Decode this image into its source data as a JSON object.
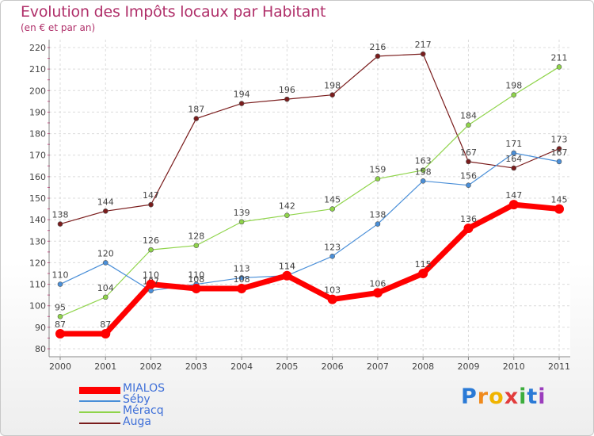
{
  "header": {
    "title": "Evolution des Impôts locaux par Habitant",
    "subtitle": "(en € et par an)"
  },
  "brand": {
    "parts": [
      "P",
      "r",
      "o",
      "x",
      "i",
      "t",
      "i"
    ]
  },
  "chart_data": {
    "type": "line",
    "title": "Evolution des Impôts locaux par Habitant",
    "subtitle": "(en € et par an)",
    "xlabel": "",
    "ylabel": "",
    "x": [
      "2000",
      "2001",
      "2002",
      "2003",
      "2004",
      "2005",
      "2006",
      "2007",
      "2008",
      "2009",
      "2010",
      "2011"
    ],
    "ylim": [
      80,
      220
    ],
    "yticks": [
      80,
      90,
      100,
      110,
      120,
      130,
      140,
      150,
      160,
      170,
      180,
      190,
      200,
      210,
      220
    ],
    "grid": true,
    "legend_position": "bottom-left",
    "series": [
      {
        "name": "Auga",
        "color": "#7a1c1c",
        "values": [
          138,
          144,
          147,
          187,
          194,
          196,
          198,
          216,
          217,
          167,
          164,
          173
        ]
      },
      {
        "name": "Méracq",
        "color": "#8fd44a",
        "values": [
          95,
          104,
          126,
          128,
          139,
          142,
          145,
          159,
          163,
          184,
          198,
          211
        ]
      },
      {
        "name": "Séby",
        "color": "#4a8fd8",
        "values": [
          110,
          120,
          107,
          110,
          113,
          114,
          123,
          138,
          158,
          156,
          171,
          167
        ]
      },
      {
        "name": "MIALOS",
        "color": "#ff0000",
        "values": [
          87,
          87,
          110,
          108,
          108,
          114,
          103,
          106,
          115,
          136,
          147,
          145
        ]
      }
    ],
    "legend_order": [
      "MIALOS",
      "Séby",
      "Méracq",
      "Auga"
    ]
  }
}
